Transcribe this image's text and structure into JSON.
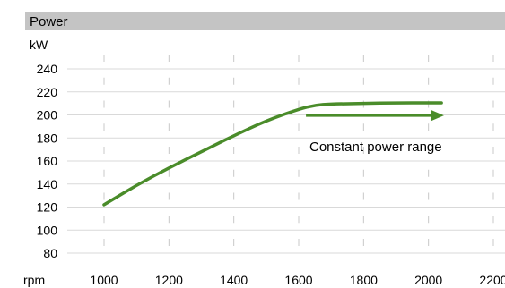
{
  "chart_data": {
    "type": "line",
    "title": "Power",
    "ylabel": "kW",
    "xlabel": "rpm",
    "xlim": [
      1000,
      2200
    ],
    "ylim": [
      80,
      240
    ],
    "x_ticks": [
      1000,
      1200,
      1400,
      1600,
      1800,
      2000,
      2200
    ],
    "y_ticks": [
      80,
      100,
      120,
      140,
      160,
      180,
      200,
      220,
      240
    ],
    "grid": true,
    "series": [
      {
        "color": "#4a8c2a",
        "x": [
          1000,
          1100,
          1200,
          1300,
          1400,
          1500,
          1600,
          1650,
          1700,
          1800,
          1900,
          2000,
          2040
        ],
        "values": [
          122,
          139,
          154,
          168,
          182,
          195,
          205,
          208.5,
          209.5,
          210,
          210.5,
          210.5,
          210.5
        ]
      }
    ],
    "annotation": {
      "text": "Constant power range",
      "arrow_from": [
        1650,
        198
      ],
      "arrow_to": [
        2020,
        198
      ],
      "color": "#4a8c2a"
    }
  }
}
